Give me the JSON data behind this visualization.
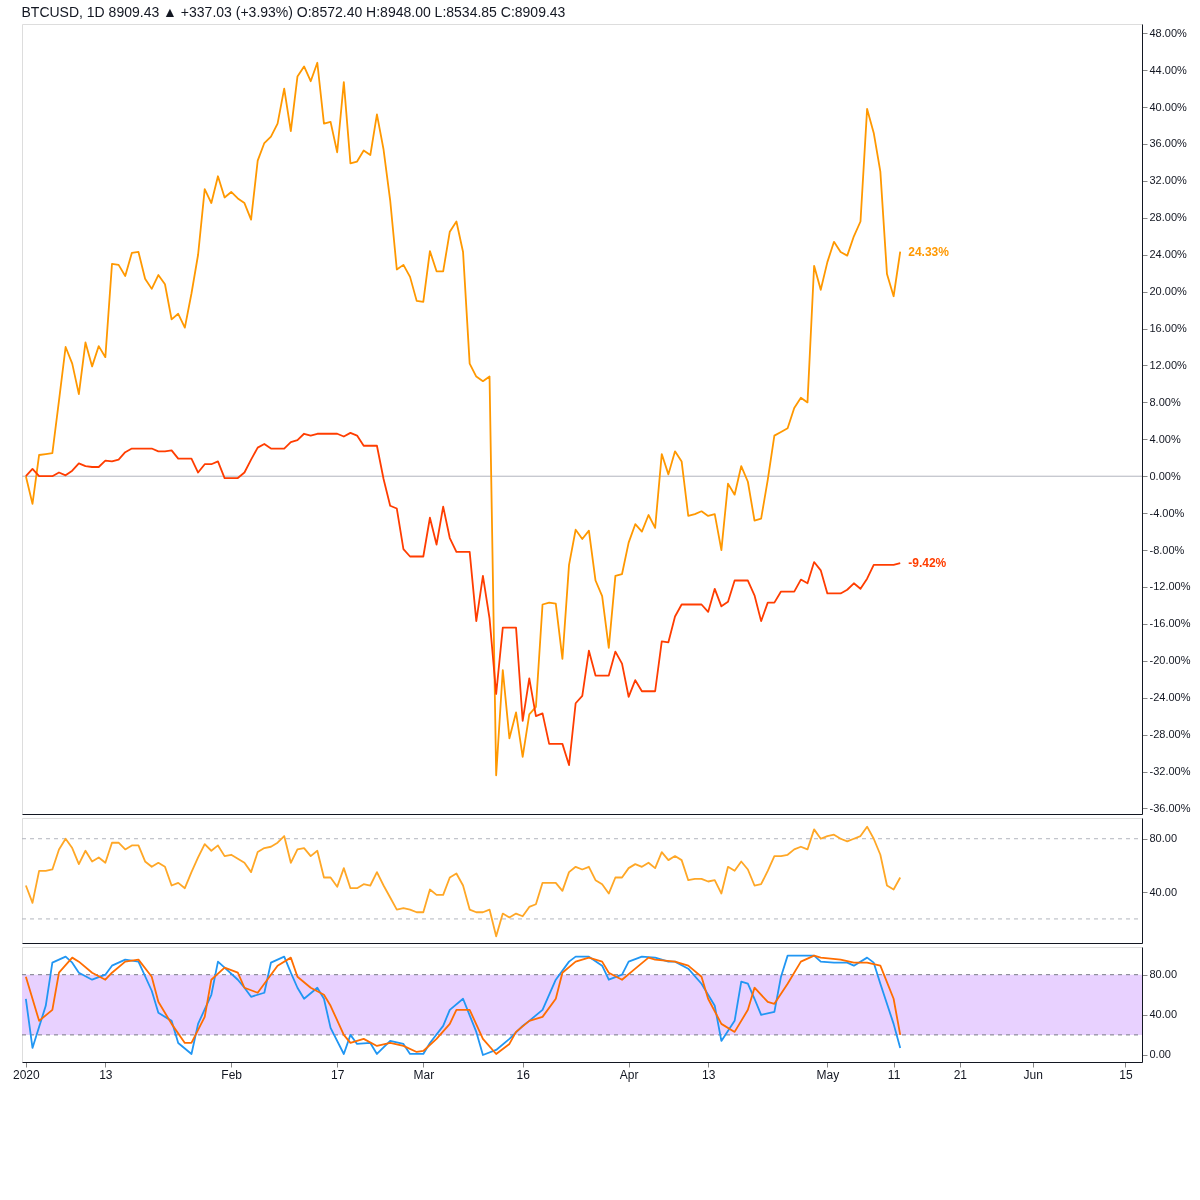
{
  "chart_data": [
    {
      "type": "line",
      "title": "BTCUSD, 1D  8909.43 ▲ +337.03 (+3.93%)  O:8572.40  H:8948.00  L:8534.85  C:8909.43",
      "x": [
        "2020-01-01",
        "2020-01-02",
        "2020-01-03",
        "2020-01-04",
        "2020-01-05",
        "2020-01-06",
        "2020-01-07",
        "2020-01-08",
        "2020-01-09",
        "2020-01-10",
        "2020-01-11",
        "2020-01-12",
        "2020-01-13",
        "2020-01-14",
        "2020-01-15",
        "2020-01-16",
        "2020-01-17",
        "2020-01-18",
        "2020-01-19",
        "2020-01-20",
        "2020-01-21",
        "2020-01-22",
        "2020-01-23",
        "2020-01-24",
        "2020-01-25",
        "2020-01-26",
        "2020-01-27",
        "2020-01-28",
        "2020-01-29",
        "2020-01-30",
        "2020-01-31",
        "2020-02-01",
        "2020-02-02",
        "2020-02-03",
        "2020-02-04",
        "2020-02-05",
        "2020-02-06",
        "2020-02-07",
        "2020-02-08",
        "2020-02-09",
        "2020-02-10",
        "2020-02-11",
        "2020-02-12",
        "2020-02-13",
        "2020-02-14",
        "2020-02-15",
        "2020-02-16",
        "2020-02-17",
        "2020-02-18",
        "2020-02-19",
        "2020-02-20",
        "2020-02-21",
        "2020-02-22",
        "2020-02-23",
        "2020-02-24",
        "2020-02-25",
        "2020-02-26",
        "2020-02-27",
        "2020-02-28",
        "2020-02-29",
        "2020-03-01",
        "2020-03-02",
        "2020-03-03",
        "2020-03-04",
        "2020-03-05",
        "2020-03-06",
        "2020-03-07",
        "2020-03-08",
        "2020-03-09",
        "2020-03-10",
        "2020-03-11",
        "2020-03-12",
        "2020-03-13",
        "2020-03-14",
        "2020-03-15",
        "2020-03-16",
        "2020-03-17",
        "2020-03-18",
        "2020-03-19",
        "2020-03-20",
        "2020-03-21",
        "2020-03-22",
        "2020-03-23",
        "2020-03-24",
        "2020-03-25",
        "2020-03-26",
        "2020-03-27",
        "2020-03-28",
        "2020-03-29",
        "2020-03-30",
        "2020-03-31",
        "2020-04-01",
        "2020-04-02",
        "2020-04-03",
        "2020-04-04",
        "2020-04-05",
        "2020-04-06",
        "2020-04-07",
        "2020-04-08",
        "2020-04-09",
        "2020-04-10",
        "2020-04-11",
        "2020-04-12",
        "2020-04-13",
        "2020-04-14",
        "2020-04-15",
        "2020-04-16",
        "2020-04-17",
        "2020-04-18",
        "2020-04-19",
        "2020-04-20",
        "2020-04-21",
        "2020-04-22",
        "2020-04-23",
        "2020-04-24",
        "2020-04-25",
        "2020-04-26",
        "2020-04-27",
        "2020-04-28",
        "2020-04-29",
        "2020-04-30",
        "2020-05-01",
        "2020-05-02",
        "2020-05-03",
        "2020-05-04",
        "2020-05-05",
        "2020-05-06",
        "2020-05-07",
        "2020-05-08",
        "2020-05-09",
        "2020-05-10",
        "2020-05-11",
        "2020-05-12"
      ],
      "series": [
        {
          "color": "#ff9800",
          "values": [
            0.0,
            -3.0,
            2.3,
            2.4,
            2.5,
            8.2,
            14.0,
            12.2,
            8.9,
            14.5,
            11.9,
            14.1,
            12.9,
            23.0,
            22.9,
            21.7,
            24.2,
            24.3,
            21.4,
            20.3,
            21.8,
            20.8,
            17.0,
            17.6,
            16.1,
            19.8,
            24.0,
            31.1,
            29.6,
            32.5,
            30.2,
            30.8,
            30.1,
            29.6,
            27.8,
            34.2,
            36.1,
            36.8,
            38.2,
            42.0,
            37.4,
            43.3,
            44.4,
            42.8,
            44.8,
            38.2,
            38.4,
            35.1,
            42.7,
            33.9,
            34.1,
            35.3,
            34.8,
            39.2,
            35.4,
            29.9,
            22.4,
            22.9,
            21.6,
            19.0,
            18.9,
            24.4,
            22.2,
            22.2,
            26.5,
            27.6,
            24.3,
            12.2,
            10.8,
            10.3,
            10.8,
            -32.4,
            -21.0,
            -28.4,
            -25.6,
            -30.4,
            -25.8,
            -25.0,
            -13.9,
            -13.7,
            -13.8,
            -19.8,
            -9.6,
            -5.8,
            -6.8,
            -5.9,
            -11.3,
            -13.0,
            -18.6,
            -10.8,
            -10.6,
            -7.2,
            -5.2,
            -6.0,
            -4.2,
            -5.6,
            2.4,
            0.2,
            2.7,
            1.6,
            -4.3,
            -4.1,
            -3.8,
            -4.3,
            -4.1,
            -8.0,
            -0.8,
            -2.0,
            1.1,
            -0.6,
            -4.8,
            -4.6,
            -0.4,
            4.4,
            4.8,
            5.2,
            7.4,
            8.5,
            8.0,
            22.8,
            20.2,
            23.2,
            25.4,
            24.3,
            23.9,
            26.0,
            27.6,
            39.8,
            37.2,
            33.0,
            21.9,
            19.5,
            24.33
          ]
        },
        {
          "color": "#ff3d00",
          "values": [
            0.0,
            0.8,
            0.0,
            0.0,
            0.0,
            0.4,
            0.1,
            0.6,
            1.4,
            1.1,
            1.0,
            1.0,
            1.7,
            1.6,
            1.8,
            2.6,
            3.0,
            3.0,
            3.0,
            3.0,
            2.7,
            2.7,
            2.8,
            1.9,
            1.9,
            1.9,
            0.4,
            1.3,
            1.3,
            1.6,
            -0.2,
            -0.2,
            -0.2,
            0.4,
            1.8,
            3.1,
            3.5,
            3.0,
            3.0,
            3.0,
            3.7,
            3.9,
            4.6,
            4.4,
            4.6,
            4.6,
            4.6,
            4.6,
            4.3,
            4.7,
            4.4,
            3.3,
            3.3,
            3.3,
            -0.3,
            -3.2,
            -3.5,
            -7.9,
            -8.7,
            -8.7,
            -8.7,
            -4.5,
            -7.4,
            -3.3,
            -6.7,
            -8.2,
            -8.2,
            -8.2,
            -15.7,
            -10.8,
            -15.4,
            -23.6,
            -16.4,
            -16.4,
            -16.4,
            -26.5,
            -21.9,
            -26.0,
            -25.7,
            -29.0,
            -29.0,
            -29.0,
            -31.3,
            -24.6,
            -23.8,
            -18.9,
            -21.6,
            -21.6,
            -21.6,
            -19.0,
            -20.3,
            -23.9,
            -22.1,
            -23.3,
            -23.3,
            -23.3,
            -17.9,
            -18.0,
            -15.2,
            -13.9,
            -13.9,
            -13.9,
            -13.9,
            -14.7,
            -12.2,
            -14.1,
            -13.6,
            -11.3,
            -11.3,
            -11.3,
            -12.9,
            -15.7,
            -13.7,
            -13.7,
            -12.5,
            -12.5,
            -12.5,
            -11.2,
            -11.6,
            -9.3,
            -10.2,
            -12.7,
            -12.7,
            -12.7,
            -12.3,
            -11.6,
            -12.2,
            -11.1,
            -9.6,
            -9.6,
            -9.6,
            -9.6,
            -9.42
          ]
        }
      ],
      "xlim": [
        "2019-12-31T10:00",
        "2020-06-17T12:00"
      ],
      "ylim": [
        -36.6,
        49
      ],
      "yticks": [
        {
          "value": 48,
          "label": "48.00%"
        },
        {
          "value": 44,
          "label": "44.00%"
        },
        {
          "value": 40,
          "label": "40.00%"
        },
        {
          "value": 36,
          "label": "36.00%"
        },
        {
          "value": 32,
          "label": "32.00%"
        },
        {
          "value": 28,
          "label": "28.00%"
        },
        {
          "value": 24,
          "label": "24.00%"
        },
        {
          "value": 20,
          "label": "20.00%"
        },
        {
          "value": 16,
          "label": "16.00%"
        },
        {
          "value": 12,
          "label": "12.00%"
        },
        {
          "value": 8,
          "label": "8.00%"
        },
        {
          "value": 4,
          "label": "4.00%"
        },
        {
          "value": 0,
          "label": "0.00%"
        },
        {
          "value": -4,
          "label": "-4.00%"
        },
        {
          "value": -8,
          "label": "-8.00%"
        },
        {
          "value": -12,
          "label": "-12.00%"
        },
        {
          "value": -16,
          "label": "-16.00%"
        },
        {
          "value": -20,
          "label": "-20.00%"
        },
        {
          "value": -24,
          "label": "-24.00%"
        },
        {
          "value": -28,
          "label": "-28.00%"
        },
        {
          "value": -32,
          "label": "-32.00%"
        },
        {
          "value": -36,
          "label": "-36.00%"
        }
      ],
      "ref_lines": [
        {
          "axis": "y",
          "value": 0,
          "color": "#b2b5be",
          "line_style": "solid"
        }
      ],
      "annotations": [
        {
          "text": "24.33%",
          "x": "2020-05-12",
          "y": 24.33
        },
        {
          "text": "-9.42%",
          "x": "2020-05-12",
          "y": -9.42
        }
      ],
      "tick_labels": "y",
      "line_style": "solid"
    },
    {
      "type": "line",
      "x": [
        "2020-01-01",
        "2020-01-02",
        "2020-01-03",
        "2020-01-04",
        "2020-01-05",
        "2020-01-06",
        "2020-01-07",
        "2020-01-08",
        "2020-01-09",
        "2020-01-10",
        "2020-01-11",
        "2020-01-12",
        "2020-01-13",
        "2020-01-14",
        "2020-01-15",
        "2020-01-16",
        "2020-01-17",
        "2020-01-18",
        "2020-01-19",
        "2020-01-20",
        "2020-01-21",
        "2020-01-22",
        "2020-01-23",
        "2020-01-24",
        "2020-01-25",
        "2020-01-26",
        "2020-01-27",
        "2020-01-28",
        "2020-01-29",
        "2020-01-30",
        "2020-01-31",
        "2020-02-01",
        "2020-02-02",
        "2020-02-03",
        "2020-02-04",
        "2020-02-05",
        "2020-02-06",
        "2020-02-07",
        "2020-02-08",
        "2020-02-09",
        "2020-02-10",
        "2020-02-11",
        "2020-02-12",
        "2020-02-13",
        "2020-02-14",
        "2020-02-15",
        "2020-02-16",
        "2020-02-17",
        "2020-02-18",
        "2020-02-19",
        "2020-02-20",
        "2020-02-21",
        "2020-02-22",
        "2020-02-23",
        "2020-02-24",
        "2020-02-25",
        "2020-02-26",
        "2020-02-27",
        "2020-02-28",
        "2020-02-29",
        "2020-03-01",
        "2020-03-02",
        "2020-03-03",
        "2020-03-04",
        "2020-03-05",
        "2020-03-06",
        "2020-03-07",
        "2020-03-08",
        "2020-03-09",
        "2020-03-10",
        "2020-03-11",
        "2020-03-12",
        "2020-03-13",
        "2020-03-14",
        "2020-03-15",
        "2020-03-16",
        "2020-03-17",
        "2020-03-18",
        "2020-03-19",
        "2020-03-20",
        "2020-03-21",
        "2020-03-22",
        "2020-03-23",
        "2020-03-24",
        "2020-03-25",
        "2020-03-26",
        "2020-03-27",
        "2020-03-28",
        "2020-03-29",
        "2020-03-30",
        "2020-03-31",
        "2020-04-01",
        "2020-04-02",
        "2020-04-03",
        "2020-04-04",
        "2020-04-05",
        "2020-04-06",
        "2020-04-07",
        "2020-04-08",
        "2020-04-09",
        "2020-04-10",
        "2020-04-11",
        "2020-04-12",
        "2020-04-13",
        "2020-04-14",
        "2020-04-15",
        "2020-04-16",
        "2020-04-17",
        "2020-04-18",
        "2020-04-19",
        "2020-04-20",
        "2020-04-21",
        "2020-04-22",
        "2020-04-23",
        "2020-04-24",
        "2020-04-25",
        "2020-04-26",
        "2020-04-27",
        "2020-04-28",
        "2020-04-29",
        "2020-04-30",
        "2020-05-01",
        "2020-05-02",
        "2020-05-03",
        "2020-05-04",
        "2020-05-05",
        "2020-05-06",
        "2020-05-07",
        "2020-05-08",
        "2020-05-09",
        "2020-05-10",
        "2020-05-11",
        "2020-05-12"
      ],
      "series": [
        {
          "color": "#ffa726",
          "values": [
            45,
            32,
            56,
            56,
            57,
            72,
            80,
            73,
            61,
            71,
            63,
            66,
            62,
            77,
            77,
            72,
            75,
            75,
            63,
            59,
            62,
            59,
            45,
            47,
            43,
            55,
            66,
            76,
            71,
            75,
            67,
            68,
            65,
            62,
            55,
            70,
            73,
            74,
            77,
            82,
            62,
            72,
            73,
            67,
            71,
            51,
            51,
            44,
            58,
            43,
            43,
            46,
            45,
            55,
            45,
            36,
            27,
            28,
            27,
            25,
            25,
            42,
            38,
            38,
            51,
            54,
            45,
            27,
            25,
            25,
            27,
            7,
            24,
            21,
            24,
            22,
            29,
            31,
            47,
            47,
            47,
            41,
            55,
            59,
            57,
            59,
            49,
            46,
            39,
            51,
            51,
            58,
            61,
            59,
            62,
            58,
            70,
            64,
            67,
            64,
            49,
            50,
            50,
            48,
            49,
            39,
            59,
            56,
            63,
            57,
            45,
            46,
            56,
            67,
            67,
            68,
            72,
            74,
            72,
            87,
            80,
            82,
            83,
            80,
            78,
            80,
            82,
            89,
            80,
            68,
            45,
            42,
            51
          ]
        }
      ],
      "xlim": [
        "2019-12-31T10:00",
        "2020-06-17T12:00"
      ],
      "ylim": [
        2,
        95.5
      ],
      "yticks": [
        {
          "value": 80,
          "label": "80.00"
        },
        {
          "value": 40,
          "label": "40.00"
        }
      ],
      "ref_lines": [
        {
          "axis": "y",
          "value": 80,
          "color": "#b2b5be",
          "line_style": "dashed"
        },
        {
          "axis": "y",
          "value": 20,
          "color": "#b2b5be",
          "line_style": "dashed"
        }
      ],
      "tick_labels": "y",
      "line_style": "solid"
    },
    {
      "type": "line",
      "series": [
        {
          "color": "#2196f3",
          "x": [
            "2020-01-01",
            "2020-01-02",
            "2020-01-04",
            "2020-01-05",
            "2020-01-07",
            "2020-01-08",
            "2020-01-09",
            "2020-01-11",
            "2020-01-13",
            "2020-01-14",
            "2020-01-16",
            "2020-01-18",
            "2020-01-20",
            "2020-01-21",
            "2020-01-23",
            "2020-01-24",
            "2020-01-26",
            "2020-01-27",
            "2020-01-29",
            "2020-01-30",
            "2020-01-31",
            "2020-02-02",
            "2020-02-03",
            "2020-02-04",
            "2020-02-06",
            "2020-02-07",
            "2020-02-09",
            "2020-02-10",
            "2020-02-11",
            "2020-02-12",
            "2020-02-14",
            "2020-02-15",
            "2020-02-16",
            "2020-02-18",
            "2020-02-19",
            "2020-02-20",
            "2020-02-22",
            "2020-02-23",
            "2020-02-25",
            "2020-02-27",
            "2020-02-28",
            "2020-03-01",
            "2020-03-02",
            "2020-03-04",
            "2020-03-05",
            "2020-03-07",
            "2020-03-09",
            "2020-03-10",
            "2020-03-12",
            "2020-03-14",
            "2020-03-16",
            "2020-03-17",
            "2020-03-19",
            "2020-03-21",
            "2020-03-23",
            "2020-03-24",
            "2020-03-26",
            "2020-03-28",
            "2020-03-29",
            "2020-03-31",
            "2020-04-01",
            "2020-04-03",
            "2020-04-05",
            "2020-04-07",
            "2020-04-08",
            "2020-04-10",
            "2020-04-12",
            "2020-04-14",
            "2020-04-15",
            "2020-04-17",
            "2020-04-18",
            "2020-04-19",
            "2020-04-20",
            "2020-04-21",
            "2020-04-23",
            "2020-04-24",
            "2020-04-25",
            "2020-04-27",
            "2020-04-29",
            "2020-04-30",
            "2020-05-02",
            "2020-05-04",
            "2020-05-05",
            "2020-05-07",
            "2020-05-08",
            "2020-05-09",
            "2020-05-11",
            "2020-05-12"
          ],
          "values": [
            56,
            7,
            49,
            92,
            98,
            92,
            82,
            75,
            80,
            89,
            95,
            93,
            64,
            42,
            34,
            12,
            1,
            31,
            60,
            93,
            87,
            75,
            67,
            58,
            62,
            92,
            98,
            82,
            67,
            56,
            67,
            56,
            27,
            1,
            20,
            11,
            12,
            1,
            14,
            11,
            1,
            1,
            12,
            29,
            45,
            56,
            23,
            0,
            5,
            16,
            29,
            34,
            45,
            75,
            93,
            98,
            98,
            89,
            75,
            80,
            93,
            98,
            97,
            93,
            93,
            86,
            71,
            49,
            14,
            34,
            73,
            71,
            56,
            40,
            43,
            78,
            99,
            99,
            99,
            93,
            92,
            92,
            89,
            97,
            92,
            71,
            31,
            7
          ]
        },
        {
          "color": "#ff6d00",
          "x": [
            "2020-01-01",
            "2020-01-02",
            "2020-01-03",
            "2020-01-05",
            "2020-01-06",
            "2020-01-08",
            "2020-01-09",
            "2020-01-11",
            "2020-01-13",
            "2020-01-14",
            "2020-01-16",
            "2020-01-18",
            "2020-01-20",
            "2020-01-21",
            "2020-01-23",
            "2020-01-25",
            "2020-01-26",
            "2020-01-28",
            "2020-01-29",
            "2020-01-31",
            "2020-02-02",
            "2020-02-03",
            "2020-02-05",
            "2020-02-06",
            "2020-02-08",
            "2020-02-10",
            "2020-02-11",
            "2020-02-13",
            "2020-02-15",
            "2020-02-16",
            "2020-02-18",
            "2020-02-19",
            "2020-02-21",
            "2020-02-23",
            "2020-02-25",
            "2020-02-27",
            "2020-02-29",
            "2020-03-01",
            "2020-03-03",
            "2020-03-05",
            "2020-03-06",
            "2020-03-08",
            "2020-03-10",
            "2020-03-12",
            "2020-03-14",
            "2020-03-15",
            "2020-03-17",
            "2020-03-19",
            "2020-03-21",
            "2020-03-22",
            "2020-03-24",
            "2020-03-26",
            "2020-03-28",
            "2020-03-29",
            "2020-03-31",
            "2020-04-02",
            "2020-04-04",
            "2020-04-05",
            "2020-04-08",
            "2020-04-10",
            "2020-04-12",
            "2020-04-13",
            "2020-04-15",
            "2020-04-17",
            "2020-04-19",
            "2020-04-20",
            "2020-04-22",
            "2020-04-23",
            "2020-04-25",
            "2020-04-27",
            "2020-04-29",
            "2020-04-30",
            "2020-05-03",
            "2020-05-05",
            "2020-05-07",
            "2020-05-09",
            "2020-05-11",
            "2020-05-12"
          ],
          "values": [
            78,
            56,
            34,
            45,
            82,
            97,
            93,
            82,
            75,
            82,
            93,
            95,
            78,
            53,
            31,
            12,
            12,
            38,
            75,
            87,
            82,
            67,
            62,
            71,
            89,
            97,
            78,
            67,
            60,
            49,
            20,
            12,
            16,
            9,
            12,
            9,
            3,
            4,
            16,
            31,
            45,
            45,
            16,
            1,
            11,
            23,
            34,
            38,
            56,
            82,
            93,
            97,
            93,
            82,
            75,
            86,
            97,
            95,
            93,
            89,
            78,
            56,
            31,
            23,
            45,
            67,
            53,
            51,
            71,
            93,
            99,
            97,
            95,
            92,
            92,
            89,
            56,
            20
          ]
        }
      ],
      "xlim": [
        "2019-12-31T10:00",
        "2020-06-17T12:00"
      ],
      "xticks": [
        {
          "value": "2020-01-01",
          "label": "2020"
        },
        {
          "value": "2020-01-13",
          "label": "13"
        },
        {
          "value": "2020-02-01",
          "label": "Feb"
        },
        {
          "value": "2020-02-17",
          "label": "17"
        },
        {
          "value": "2020-03-01",
          "label": "Mar"
        },
        {
          "value": "2020-03-16",
          "label": "16"
        },
        {
          "value": "2020-04-01",
          "label": "Apr"
        },
        {
          "value": "2020-04-13",
          "label": "13"
        },
        {
          "value": "2020-05-01",
          "label": "May"
        },
        {
          "value": "2020-05-11",
          "label": "11"
        },
        {
          "value": "2020-05-21",
          "label": "21"
        },
        {
          "value": "2020-06-01",
          "label": "Jun"
        },
        {
          "value": "2020-06-15",
          "label": "15"
        }
      ],
      "ylim": [
        -7,
        107.6
      ],
      "yticks": [
        {
          "value": 80,
          "label": "80.00"
        },
        {
          "value": 40,
          "label": "40.00"
        },
        {
          "value": 0,
          "label": "0.00"
        }
      ],
      "bands": [
        {
          "axis": "y",
          "from": 20,
          "to": 80,
          "color": "#e6ccff"
        }
      ],
      "ref_lines": [
        {
          "axis": "y",
          "value": 80,
          "color": "#787b86",
          "line_style": "dashed"
        },
        {
          "axis": "y",
          "value": 20,
          "color": "#787b86",
          "line_style": "dashed"
        }
      ],
      "line_style": "solid"
    }
  ]
}
